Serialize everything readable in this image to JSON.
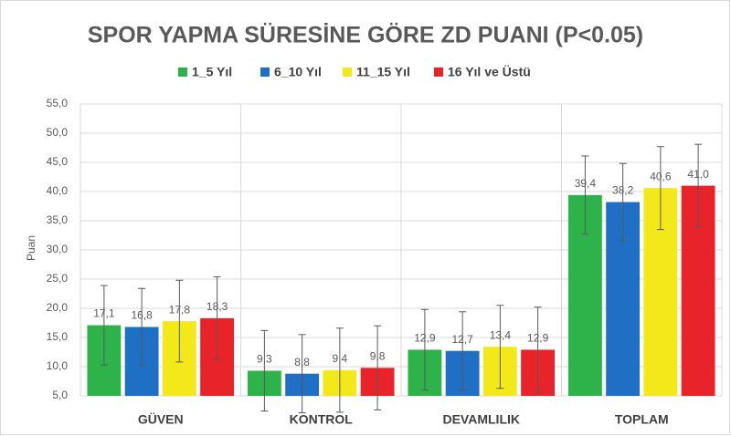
{
  "chart_data": {
    "type": "bar",
    "title": "SPOR YAPMA SÜRESİNE GÖRE ZD PUANI (P<0.05)",
    "y_label": "Puan",
    "categories": [
      "GÜVEN",
      "KONTROL",
      "DEVAMLILIK",
      "TOPLAM"
    ],
    "series": [
      {
        "name": "1_5 Yıl",
        "color": "#2db34a",
        "values": [
          17.1,
          9.3,
          12.9,
          39.4
        ],
        "value_labels": [
          "17,1",
          "9,3",
          "12,9",
          "39,4"
        ],
        "errors": [
          6.8,
          6.9,
          6.9,
          6.7
        ]
      },
      {
        "name": "6_10 Yıl",
        "color": "#1f6fc5",
        "values": [
          16.8,
          8.8,
          12.7,
          38.2
        ],
        "value_labels": [
          "16,8",
          "8,8",
          "12,7",
          "38,2"
        ],
        "errors": [
          6.6,
          6.7,
          6.7,
          6.6
        ]
      },
      {
        "name": "11_15 Yıl",
        "color": "#f2e81a",
        "values": [
          17.8,
          9.4,
          13.4,
          40.6
        ],
        "value_labels": [
          "17,8",
          "9,4",
          "13,4",
          "40,6"
        ],
        "errors": [
          7.0,
          7.2,
          7.1,
          7.1
        ]
      },
      {
        "name": "16 Yıl ve Üstü",
        "color": "#e8232a",
        "values": [
          18.3,
          9.8,
          12.9,
          41.0
        ],
        "value_labels": [
          "18,3",
          "9,8",
          "12,9",
          "41,0"
        ],
        "errors": [
          7.1,
          7.2,
          7.3,
          7.1
        ]
      }
    ],
    "ylim": [
      5,
      55
    ],
    "yticks": [
      {
        "value": 5,
        "label": "5,0"
      },
      {
        "value": 10,
        "label": "10,0"
      },
      {
        "value": 15,
        "label": "15,0"
      },
      {
        "value": 20,
        "label": "20,0"
      },
      {
        "value": 25,
        "label": "25,0"
      },
      {
        "value": 30,
        "label": "30,0"
      },
      {
        "value": 35,
        "label": "35,0"
      },
      {
        "value": 40,
        "label": "40,0"
      },
      {
        "value": 45,
        "label": "45,0"
      },
      {
        "value": 50,
        "label": "50,0"
      },
      {
        "value": 55,
        "label": "55,0"
      }
    ],
    "grid": true,
    "legend": "top"
  }
}
